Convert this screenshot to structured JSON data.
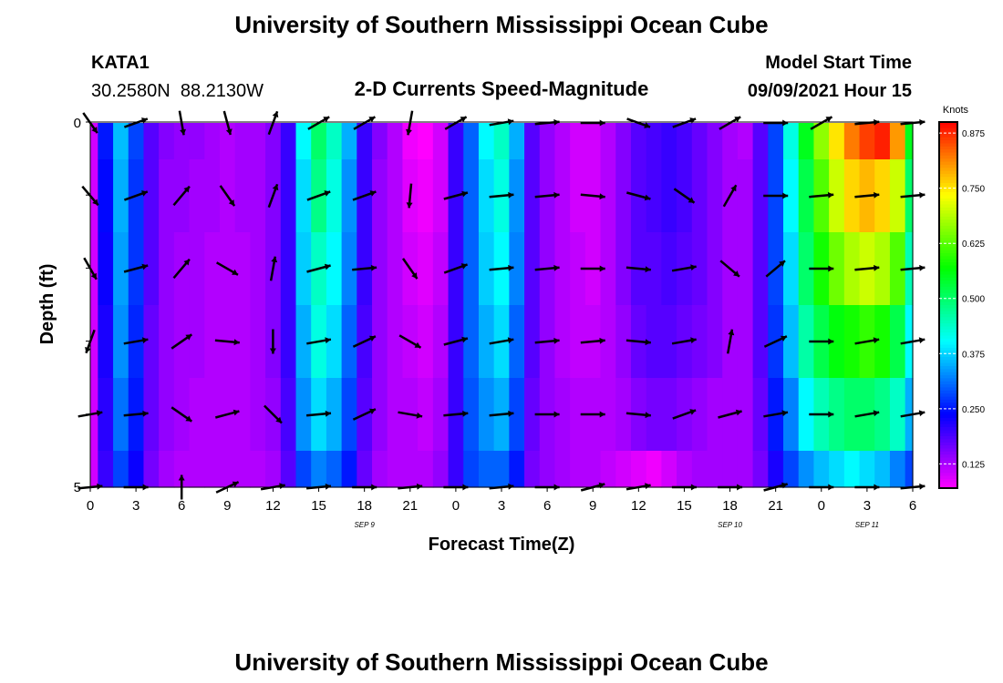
{
  "header": {
    "title": "University of Southern Mississippi Ocean Cube",
    "station": "KATA1",
    "coords": "30.2580N  88.2130W",
    "product": "2-D Currents Speed-Magnitude",
    "model_label": "Model Start Time",
    "model_time": "09/09/2021 Hour 15"
  },
  "footer": {
    "title": "University of Southern Mississippi Ocean Cube"
  },
  "chart_data": {
    "type": "heatmap",
    "title": "2-D Currents Speed-Magnitude",
    "xlabel": "Forecast Time(Z)",
    "ylabel": "Depth (ft)",
    "x_ticks": [
      "0",
      "3",
      "6",
      "9",
      "12",
      "15",
      "18",
      "21",
      "0",
      "3",
      "6",
      "9",
      "12",
      "15",
      "18",
      "21",
      "0",
      "3",
      "6"
    ],
    "x_day_labels": [
      {
        "label": "SEP 9",
        "at_tick": 6
      },
      {
        "label": "SEP 10",
        "at_tick": 14
      },
      {
        "label": "SEP 11",
        "at_tick": 17
      }
    ],
    "y_ticks": [
      "0",
      "5"
    ],
    "ylim": [
      0,
      5
    ],
    "colorbar": {
      "unit": "Knots",
      "ticks": [
        "0.125",
        "0.250",
        "0.375",
        "0.500",
        "0.625",
        "0.750",
        "0.875"
      ],
      "range": [
        0.07,
        0.9
      ]
    },
    "x_hours": [
      0,
      1,
      2,
      3,
      4,
      5,
      6,
      7,
      8,
      9,
      10,
      11,
      12,
      13,
      14,
      15,
      16,
      17,
      18,
      19,
      20,
      21,
      22,
      23,
      24,
      25,
      26,
      27,
      28,
      29,
      30,
      31,
      32,
      33,
      34,
      35,
      36,
      37,
      38,
      39,
      40,
      41,
      42,
      43,
      44,
      45,
      46,
      47,
      48,
      49,
      50,
      51,
      52,
      53,
      54
    ],
    "depth_rows": [
      "0-0.5",
      "0.5-1.5",
      "1.5-2.5",
      "2.5-3.5",
      "3.5-4.5",
      "4.5-5"
    ],
    "speed": [
      [
        0.1,
        0.25,
        0.36,
        0.28,
        0.18,
        0.15,
        0.14,
        0.14,
        0.13,
        0.12,
        0.13,
        0.13,
        0.15,
        0.2,
        0.4,
        0.5,
        0.44,
        0.35,
        0.2,
        0.15,
        0.12,
        0.08,
        0.07,
        0.1,
        0.2,
        0.3,
        0.4,
        0.44,
        0.35,
        0.18,
        0.14,
        0.12,
        0.1,
        0.1,
        0.12,
        0.15,
        0.18,
        0.19,
        0.2,
        0.19,
        0.17,
        0.15,
        0.13,
        0.12,
        0.18,
        0.28,
        0.42,
        0.55,
        0.66,
        0.75,
        0.82,
        0.86,
        0.88,
        0.8,
        0.55
      ],
      [
        0.1,
        0.24,
        0.35,
        0.27,
        0.18,
        0.14,
        0.14,
        0.13,
        0.13,
        0.12,
        0.13,
        0.13,
        0.15,
        0.2,
        0.38,
        0.48,
        0.42,
        0.33,
        0.2,
        0.14,
        0.12,
        0.09,
        0.08,
        0.1,
        0.2,
        0.3,
        0.38,
        0.42,
        0.33,
        0.18,
        0.14,
        0.12,
        0.1,
        0.1,
        0.12,
        0.15,
        0.18,
        0.19,
        0.2,
        0.19,
        0.17,
        0.15,
        0.13,
        0.13,
        0.18,
        0.28,
        0.4,
        0.52,
        0.62,
        0.7,
        0.76,
        0.78,
        0.76,
        0.7,
        0.5
      ],
      [
        0.1,
        0.23,
        0.34,
        0.27,
        0.18,
        0.14,
        0.13,
        0.13,
        0.12,
        0.12,
        0.12,
        0.13,
        0.15,
        0.2,
        0.37,
        0.44,
        0.4,
        0.32,
        0.2,
        0.14,
        0.12,
        0.1,
        0.09,
        0.11,
        0.2,
        0.3,
        0.37,
        0.4,
        0.32,
        0.18,
        0.14,
        0.12,
        0.11,
        0.1,
        0.12,
        0.15,
        0.18,
        0.18,
        0.19,
        0.18,
        0.17,
        0.15,
        0.13,
        0.13,
        0.18,
        0.28,
        0.38,
        0.5,
        0.58,
        0.64,
        0.68,
        0.7,
        0.68,
        0.62,
        0.45
      ],
      [
        0.1,
        0.22,
        0.33,
        0.26,
        0.17,
        0.14,
        0.13,
        0.13,
        0.12,
        0.12,
        0.12,
        0.13,
        0.15,
        0.2,
        0.35,
        0.42,
        0.38,
        0.3,
        0.19,
        0.14,
        0.12,
        0.11,
        0.1,
        0.12,
        0.2,
        0.3,
        0.35,
        0.38,
        0.3,
        0.18,
        0.14,
        0.12,
        0.11,
        0.11,
        0.12,
        0.14,
        0.17,
        0.18,
        0.18,
        0.17,
        0.16,
        0.15,
        0.13,
        0.13,
        0.18,
        0.27,
        0.36,
        0.46,
        0.52,
        0.56,
        0.58,
        0.6,
        0.58,
        0.52,
        0.4
      ],
      [
        0.1,
        0.21,
        0.31,
        0.25,
        0.17,
        0.14,
        0.13,
        0.12,
        0.12,
        0.12,
        0.12,
        0.13,
        0.14,
        0.19,
        0.33,
        0.38,
        0.35,
        0.28,
        0.18,
        0.14,
        0.12,
        0.12,
        0.11,
        0.13,
        0.2,
        0.29,
        0.33,
        0.35,
        0.28,
        0.17,
        0.14,
        0.13,
        0.12,
        0.12,
        0.12,
        0.13,
        0.15,
        0.16,
        0.16,
        0.15,
        0.14,
        0.13,
        0.13,
        0.13,
        0.17,
        0.25,
        0.32,
        0.4,
        0.45,
        0.48,
        0.5,
        0.5,
        0.48,
        0.44,
        0.35
      ],
      [
        0.1,
        0.2,
        0.28,
        0.23,
        0.16,
        0.13,
        0.12,
        0.12,
        0.12,
        0.12,
        0.12,
        0.12,
        0.13,
        0.18,
        0.28,
        0.32,
        0.3,
        0.25,
        0.17,
        0.13,
        0.12,
        0.12,
        0.12,
        0.14,
        0.2,
        0.28,
        0.3,
        0.3,
        0.25,
        0.16,
        0.14,
        0.13,
        0.12,
        0.12,
        0.11,
        0.1,
        0.09,
        0.08,
        0.1,
        0.12,
        0.13,
        0.13,
        0.13,
        0.13,
        0.16,
        0.22,
        0.28,
        0.33,
        0.36,
        0.38,
        0.4,
        0.38,
        0.36,
        0.32,
        0.28
      ]
    ],
    "vectors": {
      "x_hours": [
        0,
        3,
        6,
        9,
        12,
        15,
        18,
        21,
        24,
        27,
        30,
        33,
        36,
        39,
        42,
        45,
        48,
        51,
        54
      ],
      "depths": [
        0,
        1,
        2,
        3,
        4,
        5
      ],
      "angle_deg": [
        [
          55,
          -20,
          80,
          75,
          -70,
          -30,
          -30,
          100,
          -30,
          -10,
          -5,
          0,
          20,
          -20,
          -30,
          0,
          -30,
          -5,
          -5
        ],
        [
          50,
          -20,
          -50,
          55,
          -70,
          -20,
          -20,
          95,
          -15,
          -5,
          -5,
          5,
          15,
          35,
          -60,
          0,
          -5,
          -5,
          -5
        ],
        [
          60,
          -15,
          -50,
          30,
          -80,
          -15,
          -5,
          55,
          -20,
          -5,
          -5,
          0,
          5,
          -10,
          40,
          -40,
          0,
          -5,
          -5
        ],
        [
          110,
          -10,
          -35,
          5,
          90,
          -10,
          -25,
          30,
          -15,
          -10,
          -5,
          -5,
          5,
          -10,
          -80,
          -25,
          0,
          -10,
          -10
        ],
        [
          -10,
          -5,
          35,
          -15,
          45,
          -5,
          -25,
          10,
          -5,
          -5,
          0,
          0,
          5,
          -20,
          -15,
          -10,
          0,
          -10,
          -10
        ],
        [
          -5,
          0,
          -90,
          -25,
          -10,
          -5,
          0,
          -5,
          0,
          -5,
          0,
          -15,
          -10,
          0,
          0,
          -15,
          0,
          0,
          -5
        ]
      ]
    }
  }
}
